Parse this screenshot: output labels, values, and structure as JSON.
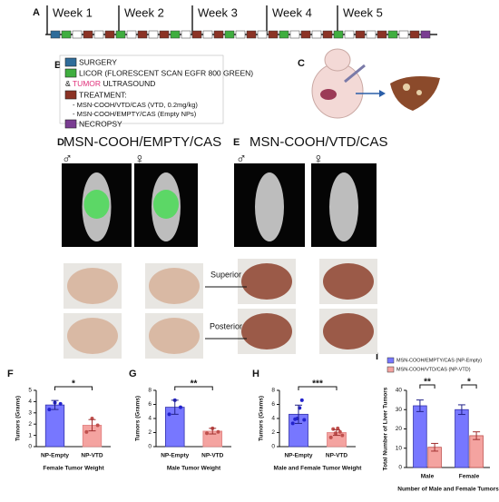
{
  "panel_labels": [
    "A",
    "B",
    "C",
    "D",
    "E",
    "F",
    "G",
    "H",
    "I"
  ],
  "timeline": {
    "weeks": [
      "Week 1",
      "Week 2",
      "Week 3",
      "Week 4",
      "Week 5"
    ]
  },
  "legend": {
    "surgery": "SURGERY",
    "licor": "LICOR (FLORESCENT SCAN EGFR 800 GREEN)",
    "ultrasound_prefix": "&",
    "ultrasound_tumor": "TUMOR",
    "ultrasound_rest": "ULTRASOUND",
    "treatment": "TREATMENT:",
    "treatment_vtd": "- MSN-COOH/VTD/CAS (VTD, 0.2mg/kg)",
    "treatment_empty": "- MSN-COOH/EMPTY/CAS (Empty NPs)",
    "necropsy": "NECROPSY"
  },
  "panel_d": {
    "title": "MSN-COOH/EMPTY/CAS",
    "male": "♂",
    "female": "♀"
  },
  "panel_e": {
    "title": "MSN-COOH/VTD/CAS",
    "male": "♂",
    "female": "♀"
  },
  "views": {
    "superior": "Superior",
    "posterior": "Posterior"
  },
  "chart_data": [
    {
      "type": "bar",
      "ylabel": "Tumors (Grams)",
      "xlabel": "Female Tumor Weight",
      "categories": [
        "NP-Empty",
        "NP-VTD"
      ],
      "values": [
        3.7,
        1.9
      ],
      "errors": [
        0.4,
        0.5
      ],
      "points": [
        [
          3.3,
          3.9,
          3.8
        ],
        [
          1.3,
          2.5,
          1.9
        ]
      ],
      "colors": [
        "#7777ff",
        "#f4a3a0"
      ],
      "ylim": [
        0,
        5
      ],
      "yticks": [
        0,
        1,
        2,
        3,
        4,
        5
      ],
      "significance": "*"
    },
    {
      "type": "bar",
      "ylabel": "Tumors (Grams)",
      "xlabel": "Male Tumor Weight",
      "categories": [
        "NP-Empty",
        "NP-VTD"
      ],
      "values": [
        5.6,
        2.2
      ],
      "errors": [
        1.0,
        0.4
      ],
      "points": [
        [
          4.6,
          6.6,
          5.6
        ],
        [
          1.9,
          2.6,
          2.1
        ]
      ],
      "colors": [
        "#7777ff",
        "#f4a3a0"
      ],
      "ylim": [
        0,
        8
      ],
      "yticks": [
        0,
        2,
        4,
        6,
        8
      ],
      "significance": "**"
    },
    {
      "type": "bar",
      "ylabel": "Tumors (Grams)",
      "xlabel": "Male and Female Tumor Weight",
      "categories": [
        "NP-Empty",
        "NP-VTD"
      ],
      "values": [
        4.6,
        2.0
      ],
      "errors": [
        1.3,
        0.4
      ],
      "points": [
        [
          3.3,
          3.9,
          4.0,
          5.5,
          6.6,
          3.8
        ],
        [
          1.3,
          2.5,
          1.9,
          2.6,
          2.1,
          1.6
        ]
      ],
      "colors": [
        "#7777ff",
        "#f4a3a0"
      ],
      "ylim": [
        0,
        8
      ],
      "yticks": [
        0,
        2,
        4,
        6,
        8
      ],
      "significance": "***"
    },
    {
      "type": "bar",
      "ylabel": "Total Number of Liver Tumors",
      "xlabel": "Number of Male and Female Tumors",
      "categories": [
        "Male",
        "Female"
      ],
      "series": [
        {
          "name": "MSN-COOH/EMPTY/CAS (NP-Empty)",
          "color": "#7777ff",
          "values": [
            32,
            30
          ],
          "errors": [
            3,
            2.5
          ]
        },
        {
          "name": "MSN-COOH/VTD/CAS (NP-VTD)",
          "color": "#f4a3a0",
          "values": [
            10.5,
            16.5
          ],
          "errors": [
            2,
            2
          ]
        }
      ],
      "ylim": [
        0,
        40
      ],
      "yticks": [
        0,
        10,
        20,
        30,
        40
      ],
      "significance": [
        "**",
        "*"
      ]
    }
  ]
}
